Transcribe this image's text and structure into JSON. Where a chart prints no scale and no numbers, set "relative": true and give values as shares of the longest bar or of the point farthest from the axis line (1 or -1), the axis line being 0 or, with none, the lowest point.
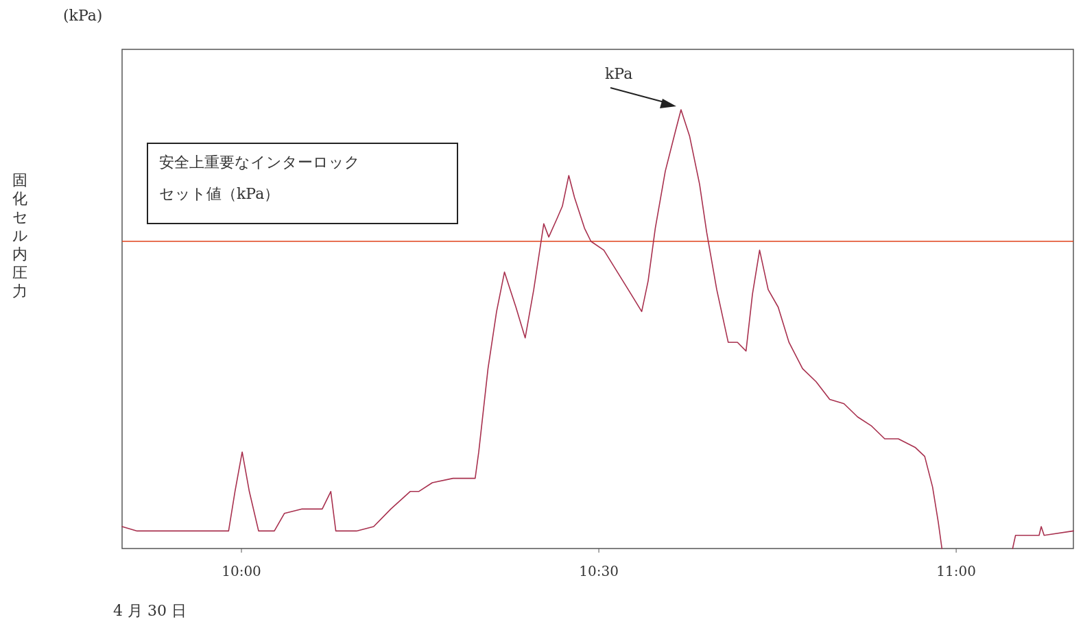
{
  "chart_data": {
    "type": "line",
    "relative": true,
    "x": [
      9.833,
      9.854,
      9.902,
      9.95,
      9.982,
      9.991,
      10.001,
      10.011,
      10.024,
      10.046,
      10.06,
      10.084,
      10.113,
      10.125,
      10.132,
      10.161,
      10.185,
      10.209,
      10.236,
      10.248,
      10.267,
      10.296,
      10.315,
      10.327,
      10.332,
      10.345,
      10.357,
      10.368,
      10.384,
      10.397,
      10.409,
      10.423,
      10.43,
      10.441,
      10.449,
      10.458,
      10.466,
      10.48,
      10.489,
      10.507,
      10.526,
      10.545,
      10.56,
      10.569,
      10.579,
      10.593,
      10.607,
      10.615,
      10.627,
      10.641,
      10.651,
      10.665,
      10.681,
      10.694,
      10.706,
      10.715,
      10.725,
      10.737,
      10.751,
      10.766,
      10.785,
      10.804,
      10.823,
      10.843,
      10.862,
      10.881,
      10.9,
      10.919,
      10.943,
      10.956,
      10.967,
      10.975,
      10.98,
      11.025,
      11.079,
      11.083,
      11.102,
      11.116,
      11.119,
      11.123,
      11.164
    ],
    "series": [
      {
        "color": "#a8304e",
        "values": [
          0.05,
          0.04,
          0.04,
          0.04,
          0.04,
          0.13,
          0.22,
          0.13,
          0.04,
          0.04,
          0.08,
          0.09,
          0.09,
          0.13,
          0.04,
          0.04,
          0.05,
          0.09,
          0.13,
          0.13,
          0.15,
          0.16,
          0.16,
          0.16,
          0.22,
          0.41,
          0.54,
          0.63,
          0.55,
          0.48,
          0.59,
          0.74,
          0.71,
          0.75,
          0.78,
          0.85,
          0.8,
          0.73,
          0.7,
          0.68,
          0.63,
          0.58,
          0.54,
          0.61,
          0.73,
          0.86,
          0.95,
          1.0,
          0.94,
          0.83,
          0.72,
          0.59,
          0.47,
          0.47,
          0.45,
          0.58,
          0.68,
          0.59,
          0.55,
          0.47,
          0.41,
          0.38,
          0.34,
          0.33,
          0.3,
          0.28,
          0.25,
          0.25,
          0.23,
          0.21,
          0.14,
          0.06,
          0,
          null,
          0,
          0.03,
          0.03,
          0.03,
          0.05,
          0.03,
          0.04
        ]
      }
    ],
    "xlim": [
      9.833,
      11.164
    ],
    "xticks": [
      {
        "value": 10,
        "label": "10:00"
      },
      {
        "value": 10.5,
        "label": "10:30"
      },
      {
        "value": 11,
        "label": "11:00"
      }
    ],
    "ref_lines": [
      {
        "axis": "y",
        "value": 0.7,
        "color": "#e0401a",
        "label": "安全上重要なインターロックセット値（kPa）"
      }
    ],
    "annotations": [
      "(kPa)",
      "kPa",
      "4 月 30 日",
      "固化セル内圧力"
    ]
  }
}
